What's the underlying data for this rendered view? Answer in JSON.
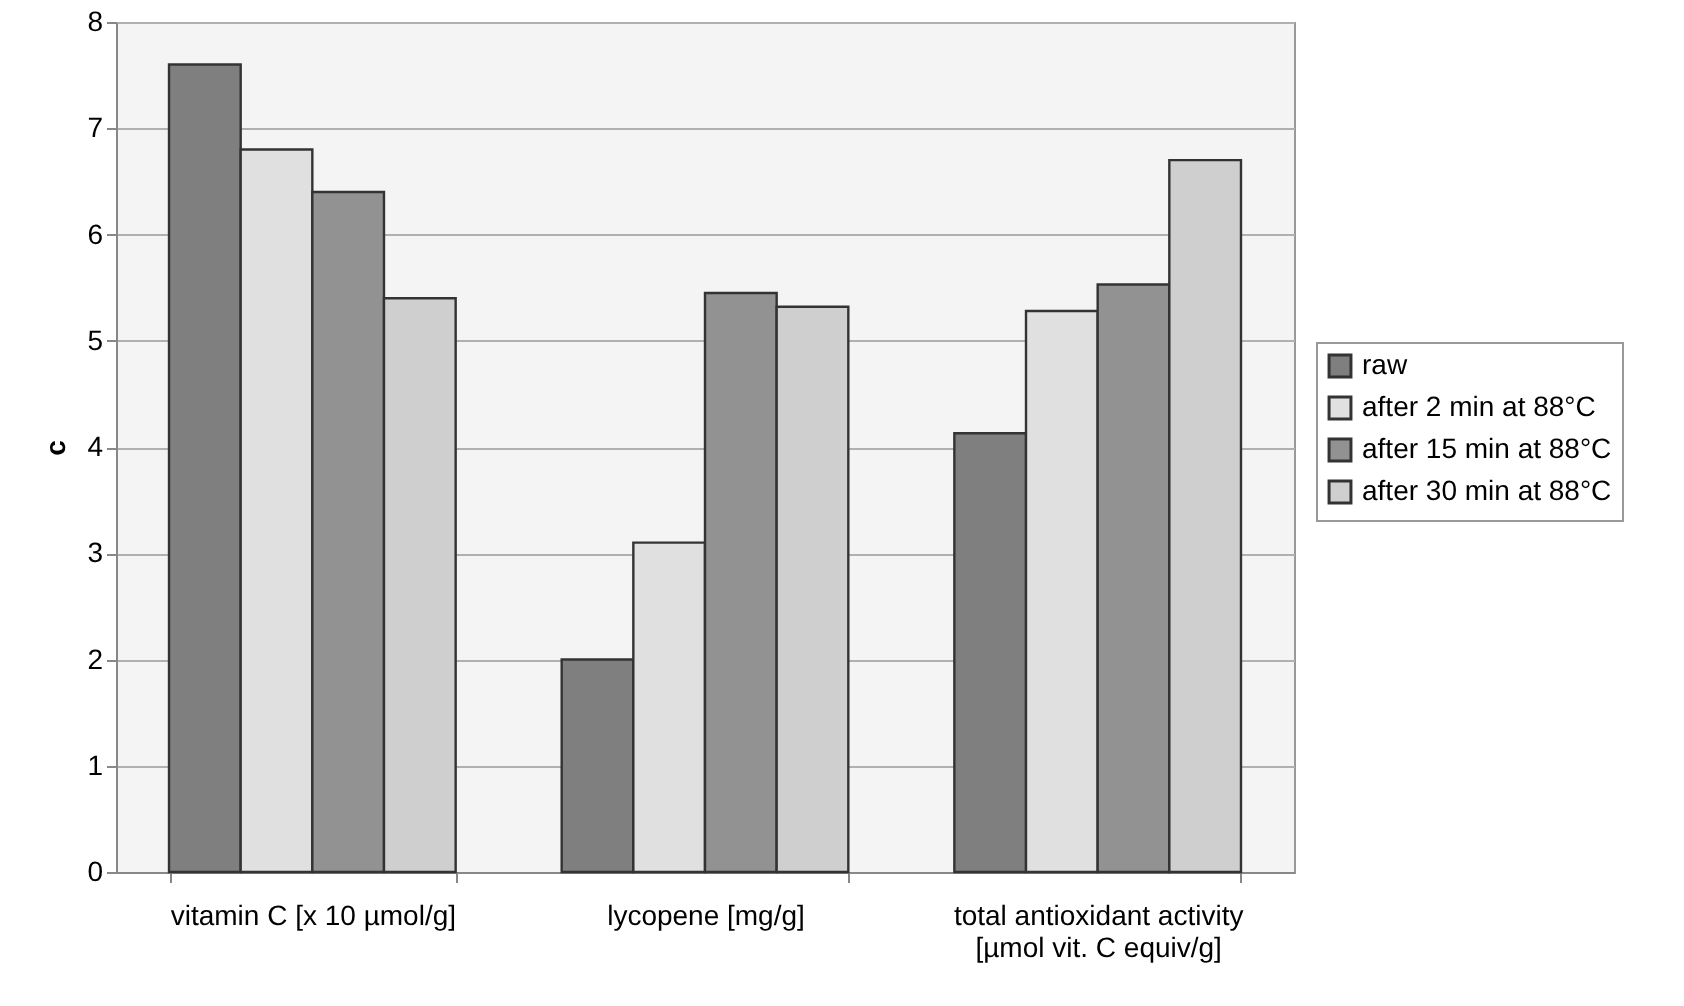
{
  "chart_data": {
    "type": "bar",
    "ylabel": "c",
    "categories": [
      "vitamin C [x 10 µmol/g]",
      "lycopene [mg/g]",
      "total antioxidant activity [µmol vit. C equiv/g]"
    ],
    "series": [
      {
        "name": "raw",
        "color": "#7f7f7f",
        "values": [
          7.6,
          2.0,
          4.13
        ]
      },
      {
        "name": "after 2 min at 88°C",
        "color": "#e0e0e0",
        "values": [
          6.8,
          3.1,
          5.28
        ]
      },
      {
        "name": "after 15 min at 88°C",
        "color": "#929292",
        "values": [
          6.4,
          5.45,
          5.53
        ]
      },
      {
        "name": "after 30 min at 88°C",
        "color": "#cfcfcf",
        "values": [
          5.4,
          5.32,
          6.7
        ]
      }
    ],
    "ylim": [
      0,
      8
    ],
    "yticks": [
      0,
      1,
      2,
      3,
      4,
      5,
      6,
      7,
      8
    ],
    "grid": "y",
    "legend": "right"
  }
}
